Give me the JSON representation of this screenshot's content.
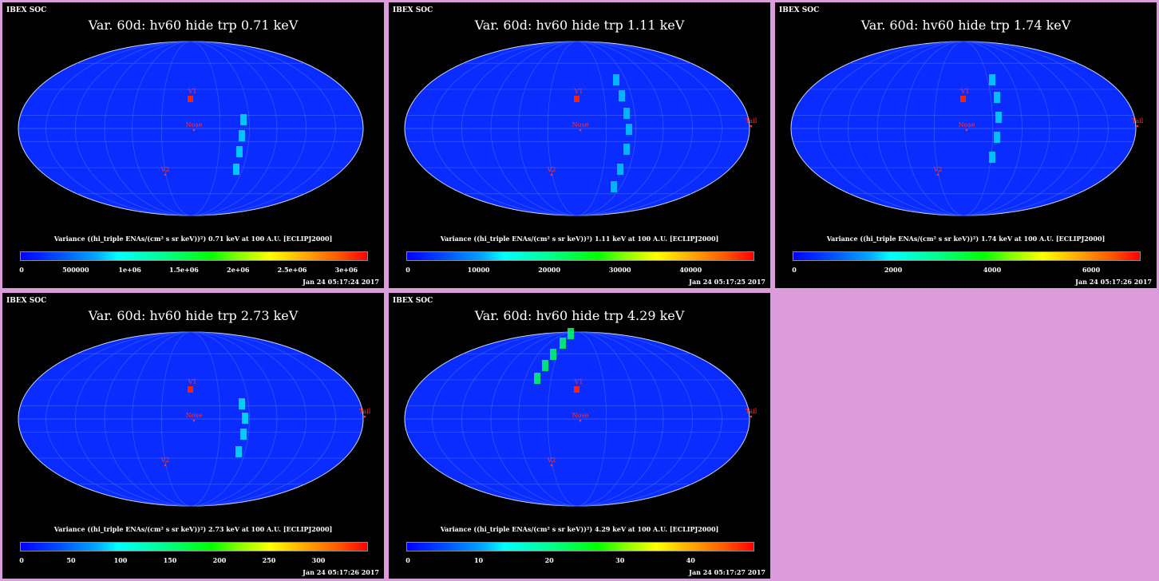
{
  "colors": {
    "background": "#dc9cdc",
    "map_base": "#0a2cff",
    "panel": "#000000"
  },
  "chart_data": [
    {
      "type": "heatmap",
      "header": "IBEX SOC",
      "title": "Var. 60d: hv60 hide trp 0.71 keV",
      "colorbar_label": "Variance ((hi_triple ENAs/(cm² s sr keV))²) 0.71 keV at 100 A.U. [ECLIPJ2000]",
      "colorbar_ticks": [
        "0",
        "500000",
        "1e+06",
        "1.5e+06",
        "2e+06",
        "2.5e+06",
        "3e+06"
      ],
      "colorbar_range": [
        0,
        3200000
      ],
      "timestamp": "Jan 24 05:17:24 2017",
      "markers": [
        "V1",
        "Nose",
        "V2"
      ]
    },
    {
      "type": "heatmap",
      "header": "IBEX SOC",
      "title": "Var. 60d: hv60 hide trp 1.11 keV",
      "colorbar_label": "Variance ((hi_triple ENAs/(cm² s sr keV))²) 1.11 keV at 100 A.U. [ECLIPJ2000]",
      "colorbar_ticks": [
        "0",
        "10000",
        "20000",
        "30000",
        "40000"
      ],
      "colorbar_range": [
        0,
        49000
      ],
      "timestamp": "Jan 24 05:17:25 2017",
      "markers": [
        "V1",
        "Nose",
        "V2",
        "Tail"
      ]
    },
    {
      "type": "heatmap",
      "header": "IBEX SOC",
      "title": "Var. 60d: hv60 hide trp 1.74 keV",
      "colorbar_label": "Variance ((hi_triple ENAs/(cm² s sr keV))²) 1.74 keV at 100 A.U. [ECLIPJ2000]",
      "colorbar_ticks": [
        "0",
        "2000",
        "4000",
        "6000"
      ],
      "colorbar_range": [
        0,
        7000
      ],
      "timestamp": "Jan 24 05:17:26 2017",
      "markers": [
        "V1",
        "Nose",
        "V2",
        "Tail"
      ]
    },
    {
      "type": "heatmap",
      "header": "IBEX SOC",
      "title": "Var. 60d: hv60 hide trp 2.73 keV",
      "colorbar_label": "Variance ((hi_triple ENAs/(cm² s sr keV))²) 2.73 keV at 100 A.U. [ECLIPJ2000]",
      "colorbar_ticks": [
        "0",
        "50",
        "100",
        "150",
        "200",
        "250",
        "300"
      ],
      "colorbar_range": [
        0,
        350
      ],
      "timestamp": "Jan 24 05:17:26 2017",
      "markers": [
        "V1",
        "Nose",
        "V2",
        "Tail"
      ]
    },
    {
      "type": "heatmap",
      "header": "IBEX SOC",
      "title": "Var. 60d: hv60 hide trp 4.29 keV",
      "colorbar_label": "Variance ((hi_triple ENAs/(cm² s sr keV))²) 4.29 keV at 100 A.U. [ECLIPJ2000]",
      "colorbar_ticks": [
        "0",
        "10",
        "20",
        "30",
        "40"
      ],
      "colorbar_range": [
        0,
        49
      ],
      "timestamp": "Jan 24 05:17:27 2017",
      "markers": [
        "V1",
        "Nose",
        "V2",
        "Tail"
      ]
    }
  ]
}
